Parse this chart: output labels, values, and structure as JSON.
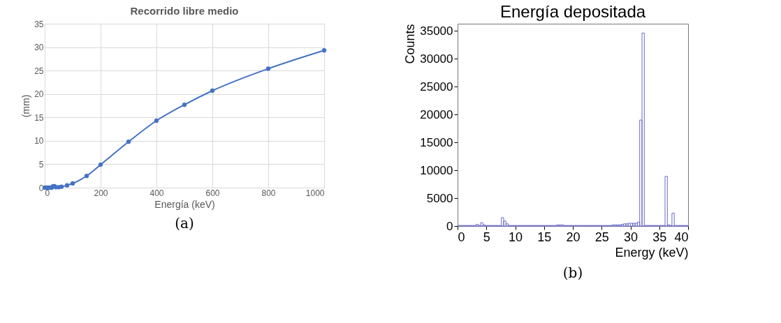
{
  "chart_data": [
    {
      "type": "line",
      "title": "Recorrido libre medio",
      "xlabel": "Energía (keV)",
      "ylabel": "(mm)",
      "x": [
        1,
        5,
        10,
        15,
        20,
        25,
        30,
        35,
        40,
        50,
        60,
        80,
        100,
        150,
        200,
        300,
        400,
        500,
        600,
        800,
        1000
      ],
      "series": [
        {
          "color": "#4472c4",
          "values": [
            0.0,
            0.0,
            0.0,
            0.0,
            0.0,
            0.0,
            0.3,
            0.3,
            0.1,
            0.1,
            0.2,
            0.5,
            0.9,
            2.5,
            4.9,
            9.8,
            14.3,
            17.7,
            20.7,
            25.4,
            29.3
          ]
        }
      ],
      "xlim": [
        0,
        1000
      ],
      "xticks": [
        0,
        200,
        400,
        600,
        800,
        1000
      ],
      "ylim": [
        0,
        35
      ],
      "yticks": [
        0,
        5,
        10,
        15,
        20,
        25,
        30,
        35
      ],
      "grid": true,
      "marker": "circle",
      "line_style": "solid",
      "annotations": [
        "(a)"
      ]
    },
    {
      "type": "histogram",
      "title": "Energía depositada",
      "xlabel": "Energy (keV)",
      "ylabel": "Counts",
      "bins": [
        0,
        0.4,
        0.8,
        1.2,
        1.6,
        2.0,
        2.4,
        2.8,
        3.2,
        3.6,
        4.0,
        4.4,
        4.8,
        5.2,
        5.6,
        6.0,
        6.4,
        6.8,
        7.2,
        7.6,
        8.0,
        8.4,
        8.8,
        9.2,
        9.6,
        10.0,
        10.4,
        10.8,
        11.2,
        11.6,
        12.0,
        12.4,
        12.8,
        13.2,
        13.6,
        14.0,
        14.4,
        14.8,
        15.2,
        15.6,
        16.0,
        16.4,
        16.8,
        17.2,
        17.6,
        18.0,
        18.4,
        18.8,
        19.2,
        19.6,
        20.0,
        20.4,
        20.8,
        21.2,
        21.6,
        22.0,
        22.4,
        22.8,
        23.2,
        23.6,
        24.0,
        24.4,
        24.8,
        25.2,
        25.6,
        26.0,
        26.4,
        26.8,
        27.2,
        27.6,
        28.0,
        28.4,
        28.8,
        29.2,
        29.6,
        30.0,
        30.4,
        30.8,
        31.2,
        31.6,
        32.0,
        32.4,
        32.8,
        33.2,
        33.6,
        34.0,
        34.4,
        34.8,
        35.2,
        35.6,
        36.0,
        36.4,
        36.8,
        37.2,
        37.6,
        38.0,
        38.4,
        38.8,
        39.2,
        39.6,
        40.0
      ],
      "values": [
        100,
        100,
        100,
        100,
        100,
        100,
        100,
        100,
        300,
        100,
        600,
        200,
        100,
        100,
        100,
        100,
        100,
        100,
        100,
        1500,
        900,
        400,
        100,
        100,
        100,
        100,
        100,
        100,
        100,
        100,
        100,
        100,
        100,
        100,
        100,
        100,
        100,
        100,
        100,
        100,
        100,
        100,
        100,
        200,
        200,
        200,
        100,
        100,
        100,
        100,
        100,
        100,
        100,
        100,
        100,
        100,
        100,
        100,
        100,
        100,
        100,
        100,
        100,
        100,
        100,
        100,
        100,
        200,
        200,
        200,
        200,
        300,
        400,
        400,
        500,
        500,
        500,
        500,
        700,
        19000,
        34600,
        100,
        100,
        100,
        100,
        100,
        100,
        100,
        100,
        100,
        8900,
        200,
        100,
        2300,
        100,
        100,
        100,
        100,
        100,
        100
      ],
      "color": "#6a6acc",
      "xlim": [
        0,
        40
      ],
      "xticks": [
        0,
        5,
        10,
        15,
        20,
        25,
        30,
        35,
        40
      ],
      "ylim": [
        0,
        36260
      ],
      "yticks": [
        0,
        5000,
        10000,
        15000,
        20000,
        25000,
        30000,
        35000
      ],
      "annotations": [
        "(b)"
      ]
    }
  ]
}
